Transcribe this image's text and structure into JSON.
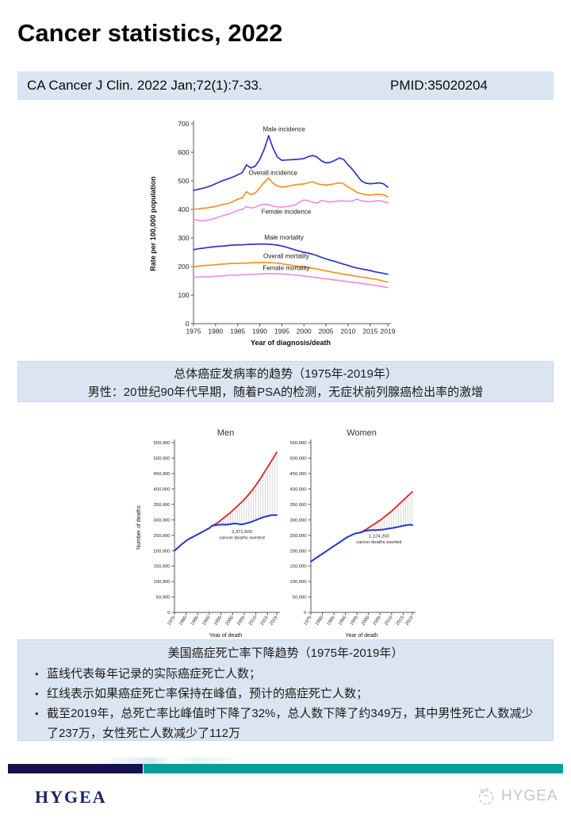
{
  "header": {
    "title": "Cancer statistics, 2022",
    "citation": "CA Cancer J Clin. 2022 Jan;72(1):7-33.",
    "pmid": "PMID:35020204"
  },
  "captions": {
    "incidence": {
      "line1": "总体癌症发病率的趋势（1975年-2019年）",
      "line2": "男性：20世纪90年代早期，随着PSA的检测，无症状前列腺癌检出率的激增"
    },
    "mortality": {
      "title": "美国癌症死亡率下降趋势（1975年-2019年）",
      "bullets": [
        "蓝线代表每年记录的实际癌症死亡人数；",
        "红线表示如果癌症死亡率保持在峰值，预计的癌症死亡人数；",
        "截至2019年，总死亡率比峰值时下降了32%，总人数下降了约349万，其中男性死亡人数减少了237万，女性死亡人数减少了112万"
      ]
    }
  },
  "footer": {
    "brand": "HYGEA",
    "watermark": "HYGEA"
  },
  "colors": {
    "male_blue": "#2b35c8",
    "overall_orange": "#f5921e",
    "female_pink": "#f28fe0",
    "actual_blue": "#1f35d4",
    "projected_red": "#e32222",
    "bar_navy": "#16114e",
    "bar_teal": "#04a098",
    "panel_blue": "#dbe5f1"
  },
  "chart_data": [
    {
      "id": "incidence-mortality-trends",
      "type": "line",
      "title": "",
      "xlabel": "Year of diagnosis/death",
      "ylabel": "Rate per 100,000 population",
      "x_start": 1975,
      "x_end": 2019,
      "xticks": [
        1975,
        1980,
        1985,
        1990,
        1995,
        2000,
        2005,
        2010,
        2015,
        2019
      ],
      "ylim": [
        0,
        700
      ],
      "yticks": [
        0,
        100,
        200,
        300,
        400,
        500,
        600,
        700
      ],
      "grid": false,
      "legend": "inline labels",
      "series": [
        {
          "name": "Male incidence",
          "color": "male_blue",
          "start": 1975,
          "values": [
            467,
            470,
            474,
            478,
            483,
            490,
            497,
            503,
            508,
            514,
            521,
            528,
            556,
            545,
            552,
            575,
            610,
            658,
            615,
            583,
            572,
            573,
            574,
            575,
            576,
            578,
            585,
            589,
            583,
            570,
            563,
            565,
            572,
            580,
            575,
            556,
            540,
            520,
            500,
            492,
            490,
            491,
            493,
            490,
            478
          ]
        },
        {
          "name": "Overall incidence",
          "color": "overall_orange",
          "start": 1975,
          "values": [
            400,
            402,
            404,
            405,
            408,
            410,
            415,
            418,
            421,
            428,
            436,
            440,
            462,
            452,
            458,
            475,
            495,
            510,
            492,
            482,
            478,
            480,
            483,
            486,
            488,
            489,
            494,
            497,
            490,
            487,
            485,
            487,
            490,
            493,
            490,
            478,
            470,
            460,
            455,
            452,
            450,
            452,
            453,
            451,
            445
          ]
        },
        {
          "name": "Female incidence",
          "color": "female_pink",
          "start": 1975,
          "values": [
            365,
            362,
            360,
            362,
            365,
            370,
            375,
            380,
            383,
            390,
            397,
            400,
            410,
            405,
            408,
            415,
            418,
            417,
            412,
            409,
            408,
            410,
            412,
            415,
            425,
            433,
            430,
            425,
            422,
            432,
            428,
            426,
            428,
            430,
            430,
            428,
            430,
            436,
            430,
            428,
            427,
            429,
            431,
            428,
            423
          ]
        },
        {
          "name": "Male mortality",
          "color": "male_blue",
          "start": 1975,
          "values": [
            259,
            262,
            264,
            266,
            268,
            270,
            271,
            272,
            274,
            275,
            276,
            276,
            277,
            278,
            278,
            279,
            279,
            278,
            277,
            275,
            272,
            268,
            263,
            258,
            254,
            250,
            247,
            243,
            238,
            232,
            227,
            222,
            218,
            213,
            208,
            204,
            199,
            195,
            192,
            189,
            186,
            182,
            179,
            176,
            173
          ]
        },
        {
          "name": "Overall mortality",
          "color": "overall_orange",
          "start": 1975,
          "values": [
            199,
            201,
            203,
            204,
            205,
            206,
            208,
            209,
            210,
            211,
            211,
            212,
            212,
            213,
            214,
            214,
            215,
            214,
            213,
            212,
            210,
            207,
            205,
            202,
            200,
            199,
            196,
            194,
            191,
            188,
            185,
            182,
            179,
            176,
            173,
            171,
            168,
            166,
            163,
            161,
            158,
            156,
            153,
            149,
            146
          ]
        },
        {
          "name": "Female mortality",
          "color": "female_pink",
          "start": 1975,
          "values": [
            162,
            163,
            164,
            164,
            165,
            166,
            167,
            168,
            169,
            170,
            170,
            171,
            172,
            173,
            173,
            174,
            175,
            175,
            175,
            175,
            174,
            173,
            172,
            170,
            169,
            167,
            165,
            163,
            161,
            159,
            157,
            155,
            153,
            151,
            149,
            147,
            145,
            143,
            141,
            139,
            137,
            134,
            132,
            129,
            126
          ]
        }
      ],
      "series_labels": [
        {
          "text": "Male incidence",
          "x": 1995.5,
          "y": 674
        },
        {
          "text": "Overall incidence",
          "x": 1993,
          "y": 521
        },
        {
          "text": "Female incidence",
          "x": 1996,
          "y": 385
        },
        {
          "text": "Male mortality",
          "x": 1995.5,
          "y": 294
        },
        {
          "text": "Overall  mortality",
          "x": 1996,
          "y": 229
        },
        {
          "text": "Female mortality",
          "x": 1996,
          "y": 188
        }
      ]
    },
    {
      "id": "deaths-men",
      "type": "line",
      "title": "Men",
      "xlabel": "Year of death",
      "ylabel": "Number of deaths",
      "x_start": 1975,
      "x_end": 2019,
      "xticks": [
        1975,
        1980,
        1985,
        1990,
        1995,
        2000,
        2005,
        2010,
        2015,
        2019
      ],
      "ylim": [
        0,
        550000
      ],
      "yticks": [
        0,
        50000,
        100000,
        150000,
        200000,
        250000,
        300000,
        350000,
        400000,
        450000,
        500000,
        550000
      ],
      "ytick_commas": true,
      "grid": false,
      "legend": "none",
      "series": [
        {
          "name": "Projected deaths if peak mortality rates persisted (red line)",
          "color": "projected_red",
          "start": 1991,
          "values": [
            280000,
            284000,
            288000,
            293000,
            299000,
            305000,
            311000,
            317000,
            323000,
            330000,
            337000,
            344000,
            351000,
            358000,
            366000,
            374000,
            383000,
            392000,
            402000,
            412000,
            423000,
            434000,
            446000,
            458000,
            470000,
            482000,
            494000,
            507000,
            519000
          ]
        },
        {
          "name": "Recorded cancer deaths (blue line)",
          "color": "actual_blue",
          "start": 1975,
          "values": [
            200000,
            206000,
            213000,
            220000,
            226000,
            232000,
            237000,
            241000,
            245000,
            249000,
            253000,
            257000,
            261000,
            265000,
            269000,
            273000,
            280000,
            282000,
            283000,
            284000,
            284000,
            285000,
            284000,
            285000,
            286000,
            287000,
            288000,
            287000,
            286000,
            285000,
            287000,
            289000,
            291000,
            293000,
            296000,
            299000,
            302000,
            305000,
            308000,
            310000,
            312000,
            314000,
            315000,
            315000,
            315000
          ]
        }
      ],
      "hatch_between": [
        0,
        1
      ],
      "annotation": {
        "lines": [
          "2,371,500",
          "cancer deaths averted"
        ],
        "x": 2004,
        "y": 257000
      }
    },
    {
      "id": "deaths-women",
      "type": "line",
      "title": "Women",
      "xlabel": "Year of death",
      "ylabel": "",
      "x_start": 1975,
      "x_end": 2019,
      "xticks": [
        1975,
        1980,
        1985,
        1990,
        1995,
        2000,
        2005,
        2010,
        2015,
        2019
      ],
      "ylim": [
        0,
        550000
      ],
      "yticks": [
        0,
        50000,
        100000,
        150000,
        200000,
        250000,
        300000,
        350000,
        400000,
        450000,
        500000,
        550000
      ],
      "ytick_commas": true,
      "grid": false,
      "legend": "none",
      "series": [
        {
          "name": "Projected deaths if peak mortality rates persisted (red line)",
          "color": "projected_red",
          "start": 1996,
          "values": [
            258000,
            261000,
            265000,
            269000,
            274000,
            279000,
            284000,
            289000,
            294000,
            299000,
            304000,
            310000,
            316000,
            322000,
            328000,
            335000,
            342000,
            349000,
            356000,
            363000,
            370000,
            377000,
            384000,
            391000
          ]
        },
        {
          "name": "Recorded cancer deaths (blue line)",
          "color": "actual_blue",
          "start": 1975,
          "values": [
            165000,
            170000,
            175000,
            180000,
            185000,
            190000,
            195000,
            200000,
            205000,
            210000,
            215000,
            220000,
            225000,
            230000,
            235000,
            240000,
            245000,
            248000,
            252000,
            255000,
            257000,
            258000,
            260000,
            263000,
            265000,
            266000,
            266000,
            267000,
            266000,
            267000,
            268000,
            268000,
            269000,
            271000,
            272000,
            273000,
            274000,
            276000,
            277000,
            279000,
            281000,
            282000,
            283000,
            284000,
            283000
          ]
        }
      ],
      "hatch_between": [
        0,
        1
      ],
      "annotation": {
        "lines": [
          "1,124,200",
          "cancer deaths averted"
        ],
        "x": 2004.5,
        "y": 243000
      }
    }
  ]
}
